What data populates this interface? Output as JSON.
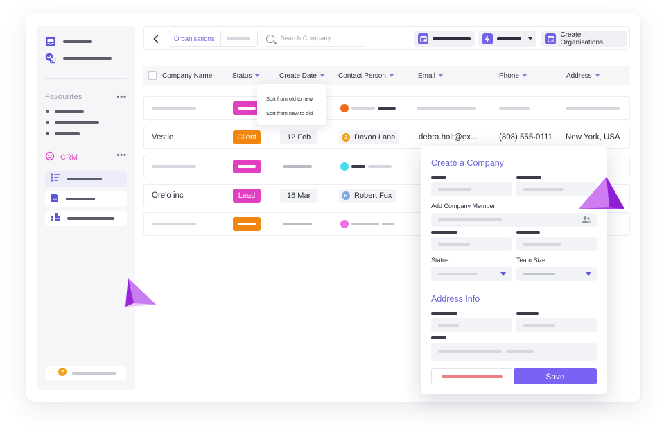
{
  "toolbar": {
    "tab_active": "Organisations",
    "search_placeholder": "Search Company",
    "create_label": "Create Organisations"
  },
  "sidebar": {
    "favourites_title": "Favourites",
    "more": "•••",
    "crm_label": "CRM"
  },
  "table": {
    "headers": {
      "company": "Company Name",
      "status": "Status",
      "create_date": "Create Date",
      "contact": "Contact Person",
      "email": "Email",
      "phone": "Phone",
      "address": "Address"
    },
    "rows": [
      {
        "company": "Vestle",
        "status": "Client",
        "date": "12 Feb",
        "contact": "Devon Lane",
        "avatar": "J",
        "email": "debra.holt@ex...",
        "phone": "(808) 555-0111",
        "address": "New York, USA"
      },
      {
        "company": "Ore'o inc",
        "status": "Lead",
        "date": "16 Mar",
        "contact": "Robert Fox",
        "avatar": "R"
      }
    ]
  },
  "sort_menu": {
    "items": [
      "Sort from old to new",
      "Sort from new to old"
    ]
  },
  "modal": {
    "title": "Create a Company",
    "member_label": "Add Company Member",
    "status_label": "Status",
    "team_size_label": "Team Size",
    "address_title": "Address Info",
    "save_label": "Save"
  },
  "colors": {
    "accent": "#6a63d9",
    "save": "#7a63f2",
    "client_orange": "#f0860f",
    "lead_pink": "#e13fc0",
    "pink": "#e13fc0",
    "avatar_orange": "#ee6a14",
    "avatar_cyan": "#4bdbe8",
    "avatar_magenta": "#ef6fe5",
    "avatar_blue": "#7ba8dd",
    "avatar_amber": "#f3a21b"
  }
}
